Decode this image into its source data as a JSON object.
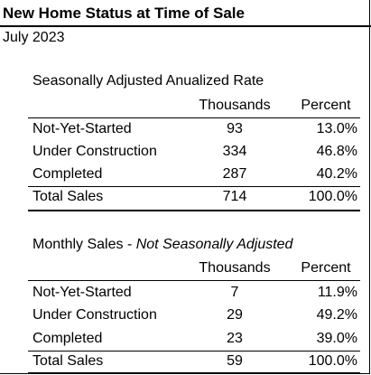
{
  "title": "New Home Status at Time of Sale",
  "subtitle": "July 2023",
  "tables": [
    {
      "heading": "Seasonally Adjusted Anualized Rate",
      "heading_italic": "",
      "col_thousands": "Thousands",
      "col_percent": "Percent",
      "rows": [
        {
          "label": "Not-Yet-Started",
          "thousands": "93",
          "percent": "13.0%"
        },
        {
          "label": "Under Construction",
          "thousands": "334",
          "percent": "46.8%"
        },
        {
          "label": "Completed",
          "thousands": "287",
          "percent": "40.2%"
        },
        {
          "label": "Total Sales",
          "thousands": "714",
          "percent": "100.0%"
        }
      ]
    },
    {
      "heading": "Monthly Sales - ",
      "heading_italic": "Not Seasonally Adjusted",
      "col_thousands": "Thousands",
      "col_percent": "Percent",
      "rows": [
        {
          "label": "Not-Yet-Started",
          "thousands": "7",
          "percent": "11.9%"
        },
        {
          "label": "Under Construction",
          "thousands": "29",
          "percent": "49.2%"
        },
        {
          "label": "Completed",
          "thousands": "23",
          "percent": "39.0%"
        },
        {
          "label": "Total Sales",
          "thousands": "59",
          "percent": "100.0%"
        }
      ]
    }
  ]
}
